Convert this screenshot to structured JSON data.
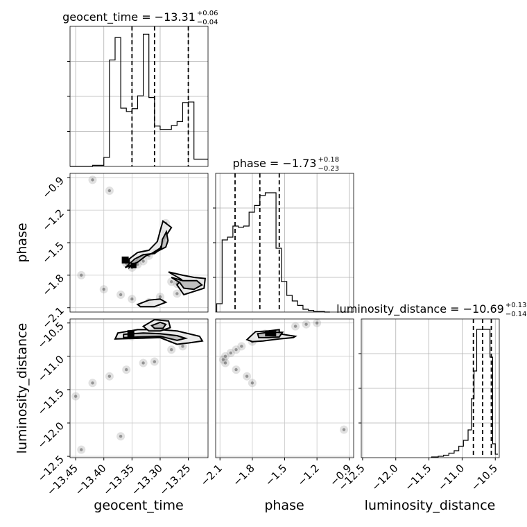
{
  "chart_data": {
    "type": "corner",
    "parameters": [
      {
        "name": "geocent_time",
        "range": [
          -13.46,
          -13.215
        ],
        "ticks": [
          -13.45,
          -13.4,
          -13.35,
          -13.3,
          -13.25
        ],
        "tick_labels": [
          "−13.45",
          "−13.40",
          "−13.35",
          "−13.30",
          "−13.25"
        ]
      },
      {
        "name": "phase",
        "range": [
          -2.14,
          -0.86
        ],
        "ticks": [
          -2.1,
          -1.8,
          -1.5,
          -1.2,
          -0.9
        ],
        "tick_labels": [
          "−2.1",
          "−1.8",
          "−1.5",
          "−1.2",
          "−0.9"
        ]
      },
      {
        "name": "luminosity_distance",
        "range": [
          -12.52,
          -10.44
        ],
        "ticks": [
          -12.5,
          -12.0,
          -11.5,
          -11.0,
          -10.5
        ],
        "tick_labels": [
          "−12.5",
          "−12.0",
          "−11.5",
          "−11.0",
          "−10.5"
        ]
      }
    ],
    "titles": [
      {
        "param": "geocent_time",
        "prefix": "geocent_time = −13.31",
        "plus": "+0.06",
        "minus": "−0.04"
      },
      {
        "param": "phase",
        "prefix": "phase = −1.73",
        "plus": "+0.18",
        "minus": "−0.23"
      },
      {
        "param": "luminosity_distance",
        "prefix": "luminosity_distance = −10.69",
        "plus": "+0.13",
        "minus": "−0.14"
      }
    ],
    "histograms": [
      {
        "param": "geocent_time",
        "bin_edges": [
          -13.46,
          -13.44,
          -13.42,
          -13.4,
          -13.39,
          -13.38,
          -13.37,
          -13.36,
          -13.35,
          -13.34,
          -13.33,
          -13.32,
          -13.31,
          -13.3,
          -13.29,
          -13.28,
          -13.27,
          -13.26,
          -13.25,
          -13.24,
          -13.23,
          -13.22,
          -13.215
        ],
        "counts": [
          0,
          0,
          0.2,
          1.6,
          19,
          23,
          10.4,
          9.8,
          10.3,
          12.6,
          23.6,
          12.3,
          7.2,
          6.6,
          6.6,
          7.3,
          8.0,
          11.4,
          11.5,
          1.3,
          1.3,
          1.3
        ],
        "quantiles": [
          -13.35,
          -13.31,
          -13.25
        ],
        "ylim": [
          0,
          25
        ]
      },
      {
        "param": "phase",
        "bin_edges": [
          -2.13,
          -2.08,
          -2.03,
          -1.98,
          -1.93,
          -1.88,
          -1.83,
          -1.78,
          -1.73,
          -1.68,
          -1.63,
          -1.58,
          -1.53,
          -1.48,
          -1.43,
          -1.38,
          -1.33,
          -1.28,
          -1.23,
          -1.18,
          -1.13,
          -1.08
        ],
        "counts": [
          1.5,
          13,
          13.5,
          15.5,
          15.3,
          15.5,
          18,
          19.2,
          21,
          21.5,
          21.5,
          11.5,
          5.5,
          3.0,
          2.0,
          1.2,
          0.5,
          0.3,
          0.1,
          0.1,
          0
        ],
        "quantiles": [
          -1.96,
          -1.73,
          -1.55
        ],
        "ylim": [
          0,
          25
        ]
      },
      {
        "param": "luminosity_distance",
        "bin_edges": [
          -11.46,
          -11.36,
          -11.28,
          -11.2,
          -11.12,
          -11.05,
          -10.98,
          -10.91,
          -10.86,
          -10.82,
          -10.78,
          -10.74,
          -10.7,
          -10.66,
          -10.62,
          -10.58,
          -10.54,
          -10.5,
          -10.46
        ],
        "counts": [
          0.2,
          0.4,
          0.7,
          1.3,
          2.0,
          3.3,
          5.0,
          8.0,
          17,
          25,
          37,
          37,
          37,
          37,
          37,
          29,
          4,
          1
        ],
        "quantiles": [
          -10.83,
          -10.69,
          -10.56
        ],
        "ylim": [
          0,
          40
        ]
      }
    ],
    "pairs": [
      {
        "x": "geocent_time",
        "y": "phase",
        "contours": [
          [
            [
              -13.355,
              -1.73
            ],
            [
              -13.335,
              -1.63
            ],
            [
              -13.315,
              -1.6
            ],
            [
              -13.3,
              -1.55
            ],
            [
              -13.29,
              -1.44
            ],
            [
              -13.28,
              -1.36
            ],
            [
              -13.295,
              -1.3
            ],
            [
              -13.3,
              -1.39
            ],
            [
              -13.305,
              -1.49
            ],
            [
              -13.32,
              -1.57
            ],
            [
              -13.34,
              -1.59
            ],
            [
              -13.355,
              -1.65
            ]
          ],
          [
            [
              -13.285,
              -1.77
            ],
            [
              -13.26,
              -1.8
            ],
            [
              -13.24,
              -1.82
            ],
            [
              -13.22,
              -1.83
            ],
            [
              -13.222,
              -1.92
            ],
            [
              -13.24,
              -1.95
            ],
            [
              -13.258,
              -1.98
            ],
            [
              -13.27,
              -1.89
            ],
            [
              -13.262,
              -1.84
            ]
          ],
          [
            [
              -13.34,
              -2.07
            ],
            [
              -13.32,
              -2.03
            ],
            [
              -13.3,
              -2.02
            ],
            [
              -13.29,
              -2.05
            ],
            [
              -13.31,
              -2.09
            ],
            [
              -13.335,
              -2.09
            ]
          ],
          [
            [
              -13.362,
              -1.73
            ],
            [
              -13.345,
              -1.65
            ],
            [
              -13.33,
              -1.61
            ],
            [
              -13.31,
              -1.6
            ],
            [
              -13.298,
              -1.55
            ],
            [
              -13.296,
              -1.47
            ],
            [
              -13.289,
              -1.4
            ],
            [
              -13.286,
              -1.48
            ],
            [
              -13.29,
              -1.54
            ],
            [
              -13.305,
              -1.58
            ],
            [
              -13.325,
              -1.62
            ],
            [
              -13.34,
              -1.68
            ]
          ],
          [
            [
              -13.28,
              -1.82
            ],
            [
              -13.26,
              -1.85
            ],
            [
              -13.235,
              -1.85
            ],
            [
              -13.226,
              -1.89
            ],
            [
              -13.24,
              -1.93
            ],
            [
              -13.258,
              -1.92
            ],
            [
              -13.265,
              -1.87
            ]
          ]
        ],
        "points": [
          [
            -13.36,
            -1.69
          ],
          [
            -13.35,
            -1.73
          ],
          [
            -13.34,
            -1.7
          ],
          [
            -13.33,
            -1.67
          ],
          [
            -13.32,
            -1.62
          ],
          [
            -13.31,
            -1.57
          ],
          [
            -13.3,
            -1.5
          ],
          [
            -13.295,
            -1.4
          ],
          [
            -13.29,
            -1.32
          ],
          [
            -13.28,
            -1.86
          ],
          [
            -13.27,
            -1.88
          ],
          [
            -13.25,
            -1.9
          ],
          [
            -13.23,
            -1.87
          ],
          [
            -13.4,
            -1.93
          ],
          [
            -13.37,
            -1.98
          ],
          [
            -13.35,
            -2.02
          ],
          [
            -13.32,
            -2.05
          ],
          [
            -13.3,
            -2.0
          ],
          [
            -13.27,
            -1.97
          ],
          [
            -13.44,
            -1.8
          ],
          [
            -13.42,
            -0.92
          ],
          [
            -13.39,
            -1.02
          ]
        ]
      },
      {
        "x": "geocent_time",
        "y": "luminosity_distance",
        "contours": [
          [
            [
              -13.375,
              -10.65
            ],
            [
              -13.34,
              -10.6
            ],
            [
              -13.3,
              -10.6
            ],
            [
              -13.27,
              -10.62
            ],
            [
              -13.23,
              -10.7
            ],
            [
              -13.225,
              -10.77
            ],
            [
              -13.25,
              -10.8
            ],
            [
              -13.27,
              -10.82
            ],
            [
              -13.3,
              -10.72
            ],
            [
              -13.34,
              -10.73
            ],
            [
              -13.38,
              -10.74
            ]
          ],
          [
            [
              -13.33,
              -10.55
            ],
            [
              -13.31,
              -10.45
            ],
            [
              -13.285,
              -10.47
            ],
            [
              -13.282,
              -10.57
            ],
            [
              -13.3,
              -10.62
            ],
            [
              -13.32,
              -10.62
            ]
          ],
          [
            [
              -13.365,
              -10.67
            ],
            [
              -13.33,
              -10.65
            ],
            [
              -13.3,
              -10.66
            ],
            [
              -13.27,
              -10.69
            ],
            [
              -13.255,
              -10.73
            ],
            [
              -13.27,
              -10.76
            ],
            [
              -13.3,
              -10.7
            ],
            [
              -13.34,
              -10.71
            ],
            [
              -13.365,
              -10.72
            ]
          ],
          [
            [
              -13.315,
              -10.54
            ],
            [
              -13.3,
              -10.49
            ],
            [
              -13.29,
              -10.52
            ],
            [
              -13.295,
              -10.58
            ],
            [
              -13.31,
              -10.58
            ]
          ]
        ],
        "points": [
          [
            -13.35,
            -10.7
          ],
          [
            -13.33,
            -10.68
          ],
          [
            -13.3,
            -10.55
          ],
          [
            -13.31,
            -11.08
          ],
          [
            -13.33,
            -11.1
          ],
          [
            -13.36,
            -11.2
          ],
          [
            -13.39,
            -11.3
          ],
          [
            -13.42,
            -11.4
          ],
          [
            -13.45,
            -11.6
          ],
          [
            -13.44,
            -12.4
          ],
          [
            -13.37,
            -12.2
          ],
          [
            -13.28,
            -10.9
          ],
          [
            -13.26,
            -10.85
          ]
        ]
      },
      {
        "x": "phase",
        "y": "luminosity_distance",
        "contours": [
          [
            [
              -1.85,
              -10.75
            ],
            [
              -1.77,
              -10.63
            ],
            [
              -1.65,
              -10.62
            ],
            [
              -1.55,
              -10.6
            ],
            [
              -1.55,
              -10.66
            ],
            [
              -1.48,
              -10.68
            ],
            [
              -1.4,
              -10.7
            ],
            [
              -1.42,
              -10.72
            ],
            [
              -1.55,
              -10.74
            ],
            [
              -1.7,
              -10.77
            ],
            [
              -1.8,
              -10.78
            ]
          ],
          [
            [
              -1.75,
              -10.66
            ],
            [
              -1.65,
              -10.64
            ],
            [
              -1.52,
              -10.64
            ],
            [
              -1.55,
              -10.71
            ],
            [
              -1.65,
              -10.72
            ],
            [
              -1.74,
              -10.72
            ]
          ]
        ],
        "points": [
          [
            -1.68,
            -10.66
          ],
          [
            -1.64,
            -10.7
          ],
          [
            -1.58,
            -10.66
          ],
          [
            -1.95,
            -10.9
          ],
          [
            -2.0,
            -10.95
          ],
          [
            -2.05,
            -11.0
          ],
          [
            -2.07,
            -11.05
          ],
          [
            -2.05,
            -11.1
          ],
          [
            -1.95,
            -11.2
          ],
          [
            -1.85,
            -11.3
          ],
          [
            -1.8,
            -11.4
          ],
          [
            -1.9,
            -10.85
          ],
          [
            -1.8,
            -10.78
          ],
          [
            -1.4,
            -10.55
          ],
          [
            -1.3,
            -10.52
          ],
          [
            -1.2,
            -10.5
          ],
          [
            -0.95,
            -12.1
          ]
        ]
      }
    ]
  }
}
